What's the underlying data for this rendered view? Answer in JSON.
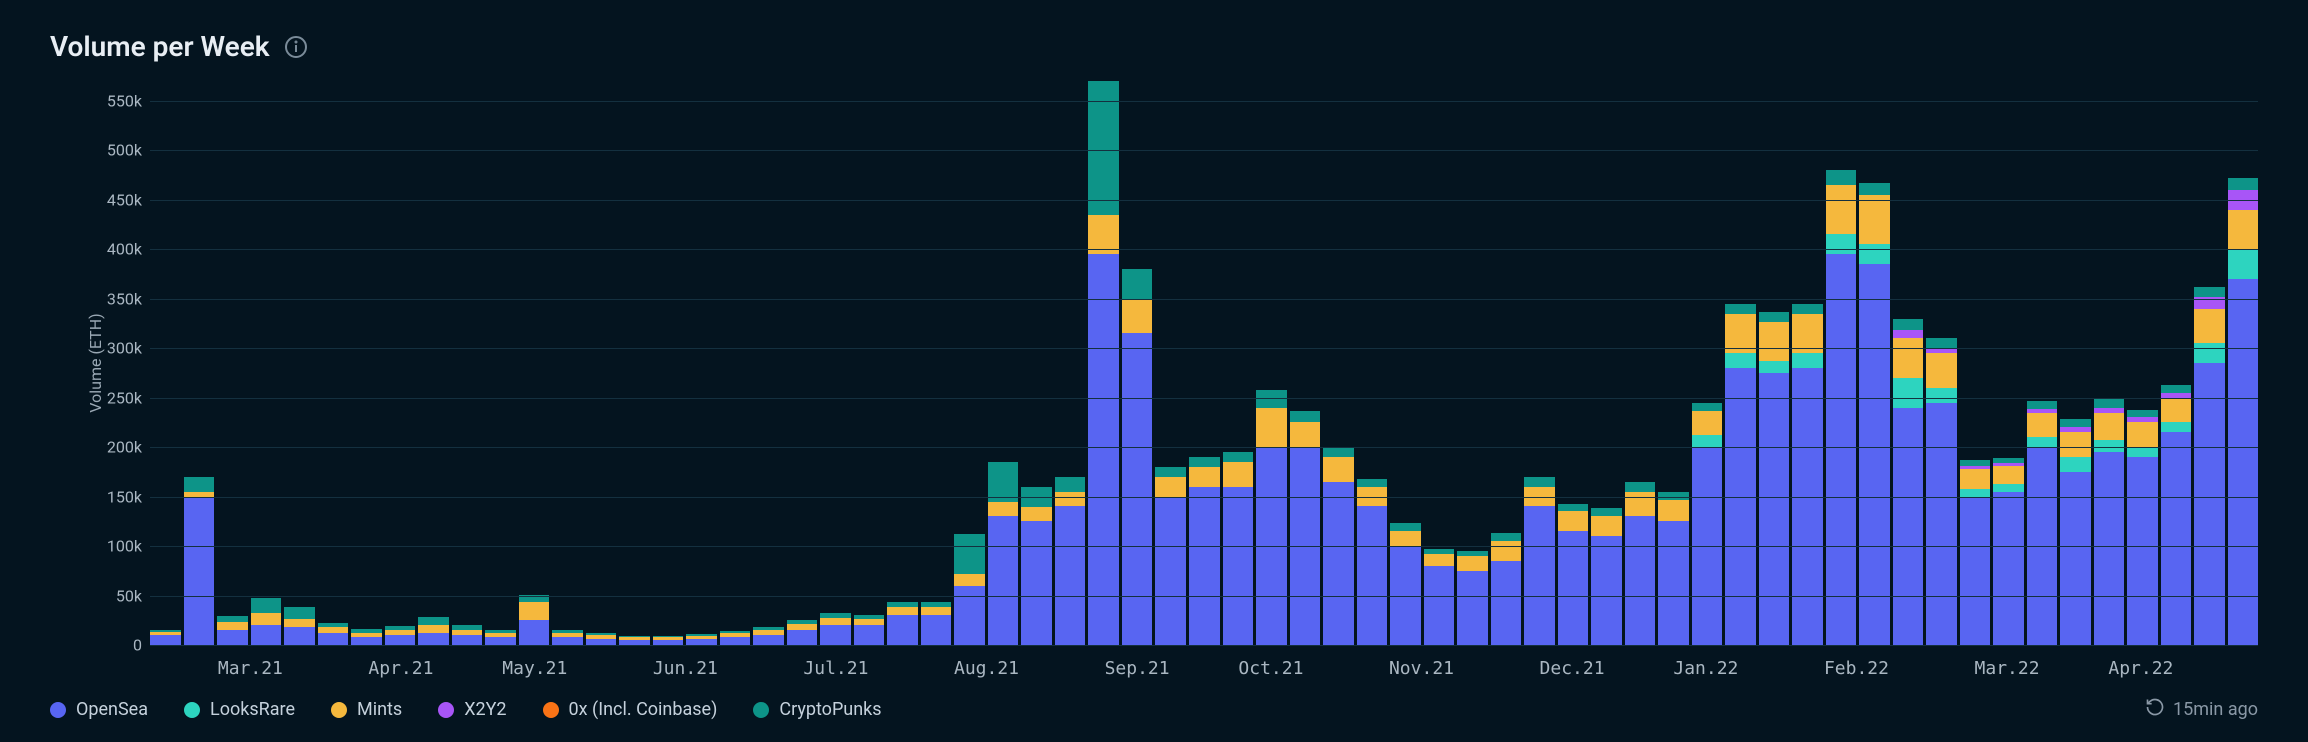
{
  "title": "Volume per Week",
  "refresh_label": "15min ago",
  "chart": {
    "type": "stacked-bar",
    "ylabel": "Volume (ETH)",
    "ylim": [
      0,
      570000
    ],
    "yticks": [
      0,
      50000,
      100000,
      150000,
      200000,
      250000,
      300000,
      350000,
      400000,
      450000,
      500000,
      550000
    ],
    "ytick_labels": [
      "0",
      "50k",
      "100k",
      "150k",
      "200k",
      "250k",
      "300k",
      "350k",
      "400k",
      "450k",
      "500k",
      "550k"
    ],
    "tick_fontsize": 16,
    "label_fontsize": 16,
    "background_color": "#04141f",
    "grid_color": "#14303f",
    "series": [
      {
        "key": "opensea",
        "label": "OpenSea",
        "color": "#5865f2"
      },
      {
        "key": "looksrare",
        "label": "LooksRare",
        "color": "#2dd4bf"
      },
      {
        "key": "mints",
        "label": "Mints",
        "color": "#f5b83d"
      },
      {
        "key": "x2y2",
        "label": "X2Y2",
        "color": "#a855f7"
      },
      {
        "key": "zerox",
        "label": "0x (Incl. Coinbase)",
        "color": "#f97316"
      },
      {
        "key": "cryptopunks",
        "label": "CryptoPunks",
        "color": "#0d9488"
      }
    ],
    "x_month_labels": [
      {
        "label": "Mar.21",
        "index": 2.5
      },
      {
        "label": "Apr.21",
        "index": 7
      },
      {
        "label": "May.21",
        "index": 11
      },
      {
        "label": "Jun.21",
        "index": 15.5
      },
      {
        "label": "Jul.21",
        "index": 20
      },
      {
        "label": "Aug.21",
        "index": 24.5
      },
      {
        "label": "Sep.21",
        "index": 29
      },
      {
        "label": "Oct.21",
        "index": 33
      },
      {
        "label": "Nov.21",
        "index": 37.5
      },
      {
        "label": "Dec.21",
        "index": 42
      },
      {
        "label": "Jan.22",
        "index": 46
      },
      {
        "label": "Feb.22",
        "index": 50.5
      },
      {
        "label": "Mar.22",
        "index": 55
      },
      {
        "label": "Apr.22",
        "index": 59
      }
    ],
    "bars": [
      {
        "opensea": 10000,
        "mints": 3000,
        "cryptopunks": 2000
      },
      {
        "opensea": 150000,
        "mints": 5000,
        "cryptopunks": 15000
      },
      {
        "opensea": 15000,
        "mints": 8000,
        "cryptopunks": 6000
      },
      {
        "opensea": 20000,
        "mints": 12000,
        "cryptopunks": 16000
      },
      {
        "opensea": 18000,
        "mints": 8000,
        "cryptopunks": 12000
      },
      {
        "opensea": 12000,
        "mints": 6000,
        "cryptopunks": 4000
      },
      {
        "opensea": 8000,
        "mints": 4000,
        "cryptopunks": 4000
      },
      {
        "opensea": 10000,
        "mints": 5000,
        "cryptopunks": 4000
      },
      {
        "opensea": 12000,
        "mints": 8000,
        "cryptopunks": 8000
      },
      {
        "opensea": 10000,
        "mints": 5000,
        "cryptopunks": 5000
      },
      {
        "opensea": 8000,
        "mints": 4000,
        "cryptopunks": 3000
      },
      {
        "opensea": 25000,
        "mints": 18000,
        "cryptopunks": 8000
      },
      {
        "opensea": 8000,
        "mints": 4000,
        "cryptopunks": 3000
      },
      {
        "opensea": 6000,
        "mints": 4000,
        "cryptopunks": 2000
      },
      {
        "opensea": 5000,
        "mints": 3000,
        "cryptopunks": 1000
      },
      {
        "opensea": 5000,
        "mints": 3000,
        "cryptopunks": 1000
      },
      {
        "opensea": 6000,
        "mints": 3000,
        "cryptopunks": 2000
      },
      {
        "opensea": 8000,
        "mints": 4000,
        "cryptopunks": 2000
      },
      {
        "opensea": 10000,
        "mints": 5000,
        "cryptopunks": 3000
      },
      {
        "opensea": 15000,
        "mints": 6000,
        "cryptopunks": 4000
      },
      {
        "opensea": 20000,
        "mints": 7000,
        "cryptopunks": 5000
      },
      {
        "opensea": 20000,
        "mints": 6000,
        "cryptopunks": 4000
      },
      {
        "opensea": 30000,
        "mints": 8000,
        "cryptopunks": 5000
      },
      {
        "opensea": 30000,
        "mints": 8000,
        "cryptopunks": 6000
      },
      {
        "opensea": 60000,
        "mints": 12000,
        "cryptopunks": 40000
      },
      {
        "opensea": 130000,
        "mints": 15000,
        "cryptopunks": 40000
      },
      {
        "opensea": 125000,
        "mints": 15000,
        "cryptopunks": 20000
      },
      {
        "opensea": 140000,
        "mints": 15000,
        "cryptopunks": 15000
      },
      {
        "opensea": 395000,
        "mints": 40000,
        "cryptopunks": 135000
      },
      {
        "opensea": 315000,
        "mints": 35000,
        "cryptopunks": 30000
      },
      {
        "opensea": 150000,
        "mints": 20000,
        "cryptopunks": 10000
      },
      {
        "opensea": 160000,
        "mints": 20000,
        "cryptopunks": 10000
      },
      {
        "opensea": 160000,
        "mints": 25000,
        "cryptopunks": 10000
      },
      {
        "opensea": 200000,
        "mints": 40000,
        "cryptopunks": 18000
      },
      {
        "opensea": 200000,
        "mints": 25000,
        "cryptopunks": 12000
      },
      {
        "opensea": 165000,
        "mints": 25000,
        "cryptopunks": 10000
      },
      {
        "opensea": 140000,
        "mints": 20000,
        "cryptopunks": 8000
      },
      {
        "opensea": 100000,
        "mints": 15000,
        "cryptopunks": 8000
      },
      {
        "opensea": 80000,
        "mints": 12000,
        "cryptopunks": 5000
      },
      {
        "opensea": 75000,
        "mints": 15000,
        "cryptopunks": 5000
      },
      {
        "opensea": 85000,
        "mints": 20000,
        "cryptopunks": 8000
      },
      {
        "opensea": 140000,
        "mints": 20000,
        "cryptopunks": 10000
      },
      {
        "opensea": 115000,
        "mints": 20000,
        "cryptopunks": 8000
      },
      {
        "opensea": 110000,
        "mints": 20000,
        "cryptopunks": 8000
      },
      {
        "opensea": 130000,
        "mints": 25000,
        "cryptopunks": 10000
      },
      {
        "opensea": 125000,
        "mints": 22000,
        "cryptopunks": 8000
      },
      {
        "opensea": 200000,
        "mints": 25000,
        "looksrare": 12000,
        "cryptopunks": 8000
      },
      {
        "opensea": 280000,
        "mints": 40000,
        "looksrare": 15000,
        "cryptopunks": 10000
      },
      {
        "opensea": 275000,
        "mints": 40000,
        "looksrare": 12000,
        "cryptopunks": 10000
      },
      {
        "opensea": 280000,
        "mints": 40000,
        "looksrare": 15000,
        "cryptopunks": 10000
      },
      {
        "opensea": 395000,
        "mints": 50000,
        "looksrare": 20000,
        "cryptopunks": 15000
      },
      {
        "opensea": 385000,
        "mints": 50000,
        "looksrare": 20000,
        "cryptopunks": 12000
      },
      {
        "opensea": 240000,
        "mints": 40000,
        "looksrare": 30000,
        "cryptopunks": 12000,
        "x2y2": 8000
      },
      {
        "opensea": 245000,
        "mints": 35000,
        "looksrare": 15000,
        "cryptopunks": 10000,
        "x2y2": 5000
      },
      {
        "opensea": 150000,
        "mints": 20000,
        "looksrare": 8000,
        "cryptopunks": 6000,
        "x2y2": 3000
      },
      {
        "opensea": 155000,
        "mints": 18000,
        "looksrare": 8000,
        "cryptopunks": 5000,
        "x2y2": 3000
      },
      {
        "opensea": 200000,
        "mints": 25000,
        "looksrare": 10000,
        "cryptopunks": 8000,
        "x2y2": 4000
      },
      {
        "opensea": 175000,
        "mints": 25000,
        "looksrare": 15000,
        "cryptopunks": 8000,
        "x2y2": 5000
      },
      {
        "opensea": 195000,
        "mints": 28000,
        "looksrare": 12000,
        "cryptopunks": 10000,
        "x2y2": 5000
      },
      {
        "opensea": 190000,
        "mints": 25000,
        "looksrare": 10000,
        "cryptopunks": 8000,
        "x2y2": 5000
      },
      {
        "opensea": 215000,
        "mints": 25000,
        "looksrare": 10000,
        "cryptopunks": 8000,
        "x2y2": 5000
      },
      {
        "opensea": 285000,
        "mints": 35000,
        "looksrare": 20000,
        "cryptopunks": 10000,
        "x2y2": 12000
      },
      {
        "opensea": 370000,
        "mints": 40000,
        "looksrare": 30000,
        "cryptopunks": 12000,
        "x2y2": 20000
      }
    ]
  }
}
